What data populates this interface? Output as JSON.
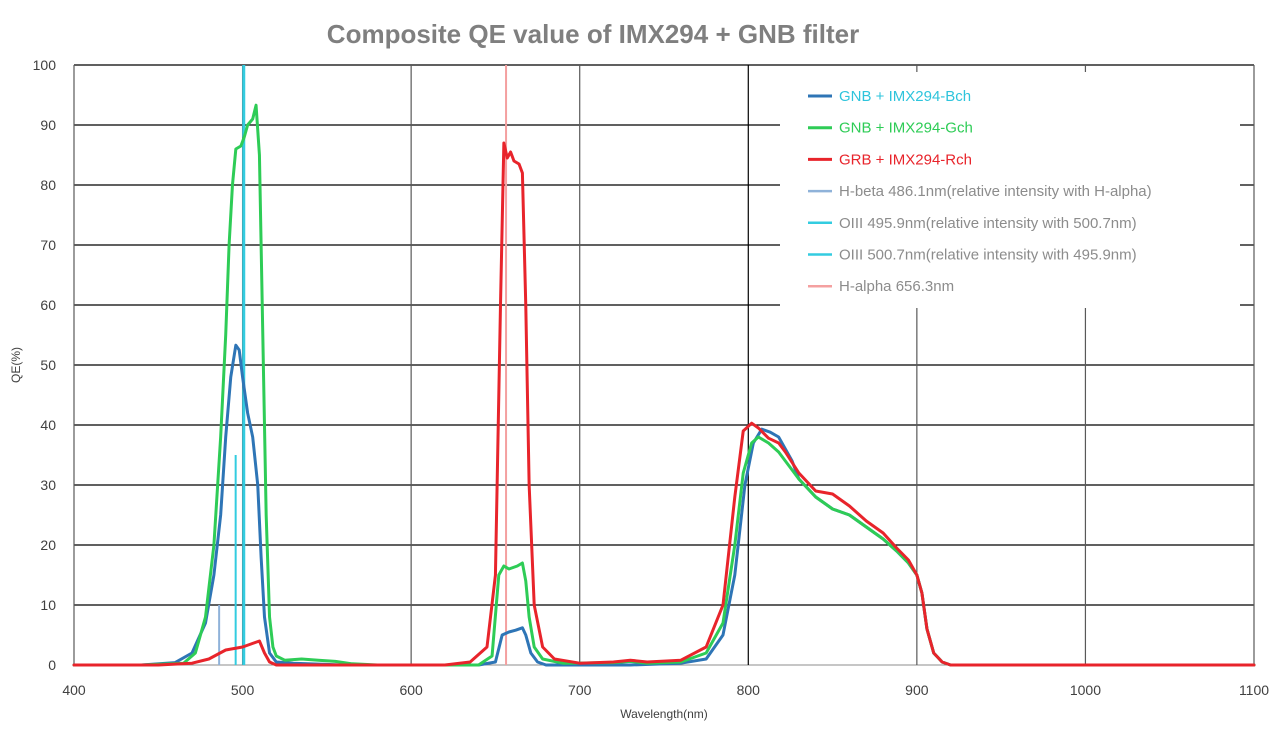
{
  "chart_data": {
    "type": "line",
    "title": "Composite QE value of IMX294 + GNB filter",
    "xlabel": "Wavelength(nm)",
    "ylabel": "QE(%)",
    "xlim": [
      400,
      1100
    ],
    "ylim": [
      0,
      100
    ],
    "xticks": [
      400,
      500,
      600,
      700,
      800,
      900,
      1000,
      1100
    ],
    "yticks": [
      0,
      10,
      20,
      30,
      40,
      50,
      60,
      70,
      80,
      90,
      100
    ],
    "grid": true,
    "legend": "top-right",
    "series": [
      {
        "name": "GNB + IMX294-Bch",
        "color": "#2e75b6",
        "kind": "curve",
        "points": [
          [
            400,
            0
          ],
          [
            440,
            0
          ],
          [
            460,
            0.4
          ],
          [
            470,
            2
          ],
          [
            478,
            7
          ],
          [
            483,
            15
          ],
          [
            487,
            25
          ],
          [
            490,
            38
          ],
          [
            493,
            48
          ],
          [
            496,
            53.3
          ],
          [
            498,
            52.5
          ],
          [
            500,
            48
          ],
          [
            503,
            42
          ],
          [
            506,
            38
          ],
          [
            509,
            30
          ],
          [
            511,
            18
          ],
          [
            513,
            8
          ],
          [
            516,
            2
          ],
          [
            520,
            0.5
          ],
          [
            530,
            0.3
          ],
          [
            560,
            0
          ],
          [
            640,
            0
          ],
          [
            650,
            0.5
          ],
          [
            654,
            5
          ],
          [
            658,
            5.5
          ],
          [
            662,
            5.8
          ],
          [
            666,
            6.2
          ],
          [
            668,
            5
          ],
          [
            671,
            2
          ],
          [
            675,
            0.5
          ],
          [
            680,
            0
          ],
          [
            700,
            0
          ],
          [
            730,
            0
          ],
          [
            760,
            0.3
          ],
          [
            775,
            1
          ],
          [
            785,
            5
          ],
          [
            792,
            15
          ],
          [
            798,
            30
          ],
          [
            803,
            37
          ],
          [
            808,
            39.3
          ],
          [
            813,
            38.8
          ],
          [
            818,
            38
          ],
          [
            822,
            36
          ],
          [
            826,
            34
          ],
          [
            830,
            31
          ],
          [
            840,
            28
          ],
          [
            850,
            26
          ],
          [
            860,
            25
          ],
          [
            870,
            23
          ],
          [
            880,
            21
          ],
          [
            888,
            19
          ],
          [
            895,
            17
          ],
          [
            900,
            15
          ],
          [
            903,
            12
          ],
          [
            906,
            6
          ],
          [
            910,
            2
          ],
          [
            915,
            0.5
          ],
          [
            920,
            0
          ],
          [
            1100,
            0
          ]
        ]
      },
      {
        "name": "GNB + IMX294-Gch",
        "color": "#2ecc56",
        "kind": "curve",
        "points": [
          [
            400,
            0
          ],
          [
            440,
            0
          ],
          [
            465,
            0.3
          ],
          [
            472,
            2
          ],
          [
            478,
            8
          ],
          [
            483,
            20
          ],
          [
            487,
            38
          ],
          [
            490,
            55
          ],
          [
            492,
            70
          ],
          [
            494,
            80
          ],
          [
            496,
            86
          ],
          [
            499,
            86.5
          ],
          [
            501,
            88
          ],
          [
            503,
            90
          ],
          [
            506,
            91
          ],
          [
            508,
            93.3
          ],
          [
            510,
            85
          ],
          [
            512,
            55
          ],
          [
            514,
            25
          ],
          [
            516,
            8
          ],
          [
            518,
            3
          ],
          [
            520,
            1.5
          ],
          [
            525,
            0.8
          ],
          [
            535,
            1
          ],
          [
            545,
            0.8
          ],
          [
            555,
            0.6
          ],
          [
            565,
            0.2
          ],
          [
            580,
            0
          ],
          [
            640,
            0
          ],
          [
            648,
            1.5
          ],
          [
            652,
            15
          ],
          [
            655,
            16.5
          ],
          [
            658,
            16
          ],
          [
            663,
            16.5
          ],
          [
            666,
            17
          ],
          [
            668,
            14
          ],
          [
            670,
            8
          ],
          [
            673,
            3
          ],
          [
            678,
            1
          ],
          [
            690,
            0.3
          ],
          [
            720,
            0.4
          ],
          [
            730,
            0.6
          ],
          [
            740,
            0.3
          ],
          [
            760,
            0.5
          ],
          [
            775,
            2
          ],
          [
            785,
            7
          ],
          [
            792,
            20
          ],
          [
            797,
            32
          ],
          [
            802,
            37
          ],
          [
            806,
            38
          ],
          [
            812,
            37
          ],
          [
            818,
            35.5
          ],
          [
            822,
            34
          ],
          [
            830,
            31
          ],
          [
            840,
            28
          ],
          [
            850,
            26
          ],
          [
            860,
            25
          ],
          [
            870,
            23
          ],
          [
            880,
            21
          ],
          [
            888,
            19
          ],
          [
            895,
            17
          ],
          [
            900,
            15
          ],
          [
            903,
            12
          ],
          [
            906,
            6
          ],
          [
            910,
            2
          ],
          [
            915,
            0.5
          ],
          [
            920,
            0
          ],
          [
            1100,
            0
          ]
        ]
      },
      {
        "name": "GRB + IMX294-Rch",
        "color": "#e8242b",
        "kind": "curve",
        "points": [
          [
            400,
            0
          ],
          [
            450,
            0
          ],
          [
            470,
            0.3
          ],
          [
            480,
            1
          ],
          [
            490,
            2.5
          ],
          [
            500,
            3
          ],
          [
            505,
            3.5
          ],
          [
            510,
            4
          ],
          [
            513,
            2
          ],
          [
            516,
            0.5
          ],
          [
            520,
            0
          ],
          [
            620,
            0
          ],
          [
            635,
            0.5
          ],
          [
            645,
            3
          ],
          [
            650,
            15
          ],
          [
            653,
            60
          ],
          [
            655,
            87
          ],
          [
            657,
            84.5
          ],
          [
            659,
            85.5
          ],
          [
            661,
            84
          ],
          [
            664,
            83.5
          ],
          [
            666,
            82
          ],
          [
            668,
            60
          ],
          [
            670,
            30
          ],
          [
            673,
            10
          ],
          [
            678,
            3
          ],
          [
            685,
            1
          ],
          [
            700,
            0.3
          ],
          [
            720,
            0.5
          ],
          [
            730,
            0.8
          ],
          [
            740,
            0.5
          ],
          [
            760,
            0.8
          ],
          [
            775,
            3
          ],
          [
            785,
            10
          ],
          [
            792,
            28
          ],
          [
            797,
            39
          ],
          [
            802,
            40.3
          ],
          [
            806,
            39.5
          ],
          [
            812,
            37.8
          ],
          [
            818,
            37
          ],
          [
            822,
            35.5
          ],
          [
            830,
            32
          ],
          [
            840,
            29
          ],
          [
            850,
            28.5
          ],
          [
            860,
            26.5
          ],
          [
            870,
            24
          ],
          [
            880,
            22
          ],
          [
            888,
            19.5
          ],
          [
            895,
            17.5
          ],
          [
            900,
            15
          ],
          [
            903,
            12
          ],
          [
            906,
            6
          ],
          [
            910,
            2
          ],
          [
            915,
            0.5
          ],
          [
            920,
            0
          ],
          [
            1100,
            0
          ]
        ]
      },
      {
        "name": "H-beta 486.1nm(relative intensity with H-alpha)",
        "color": "#8fb2d9",
        "kind": "emission",
        "wavelength": 486.1,
        "value": 10
      },
      {
        "name": "OIII 495.9nm(relative intensity with 500.7nm)",
        "color": "#33cce0",
        "kind": "emission",
        "wavelength": 495.9,
        "value": 35
      },
      {
        "name": "OIII 500.7nm(relative intensity with 495.9nm)",
        "color": "#33cce0",
        "kind": "emission",
        "wavelength": 500.7,
        "value": 100
      },
      {
        "name": "H-alpha 656.3nm",
        "color": "#f4a0a0",
        "kind": "emission",
        "wavelength": 656.3,
        "value": 100
      }
    ]
  }
}
